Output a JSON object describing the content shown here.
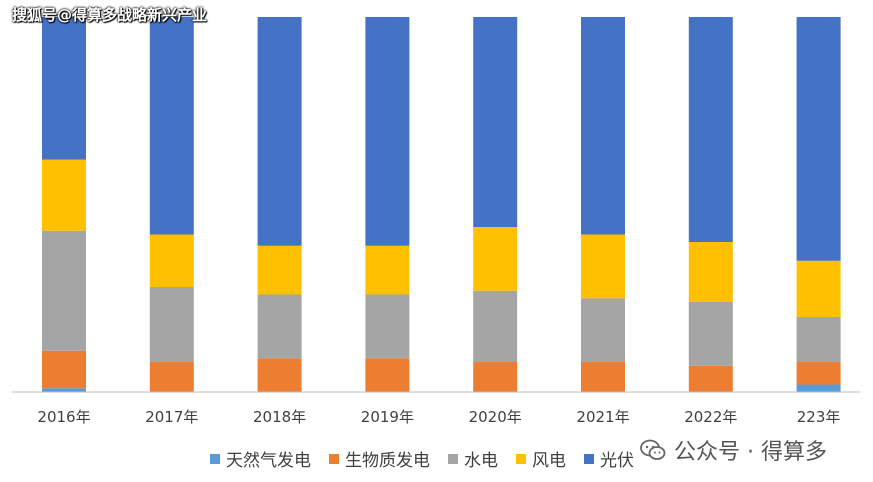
{
  "watermark": "搜狐号@得算多战略新兴产业",
  "brand": {
    "icon": "wechat-icon",
    "text": "公众号 · 得算多"
  },
  "chart_data": {
    "type": "bar",
    "stacked": true,
    "percent_stacked": true,
    "categories": [
      "2016年",
      "2017年",
      "2018年",
      "2019年",
      "2020年",
      "2021年",
      "2022年",
      "223年"
    ],
    "series": [
      {
        "name": "天然气发电",
        "color": "#5B9BD5",
        "values": [
          1,
          0,
          0,
          0,
          0,
          0,
          0,
          2
        ]
      },
      {
        "name": "生物质发电",
        "color": "#ED7D31",
        "values": [
          10,
          8,
          9,
          9,
          8,
          8,
          7,
          6
        ]
      },
      {
        "name": "水电",
        "color": "#A5A5A5",
        "values": [
          32,
          20,
          17,
          17,
          19,
          17,
          17,
          12
        ]
      },
      {
        "name": "风电",
        "color": "#FFC000",
        "values": [
          19,
          14,
          13,
          13,
          17,
          17,
          16,
          15
        ]
      },
      {
        "name": "光伏",
        "color": "#4472C4",
        "values": [
          38,
          58,
          61,
          61,
          56,
          58,
          60,
          65
        ]
      }
    ],
    "ylim": [
      0,
      100
    ],
    "grid": false,
    "legend_position": "bottom"
  }
}
